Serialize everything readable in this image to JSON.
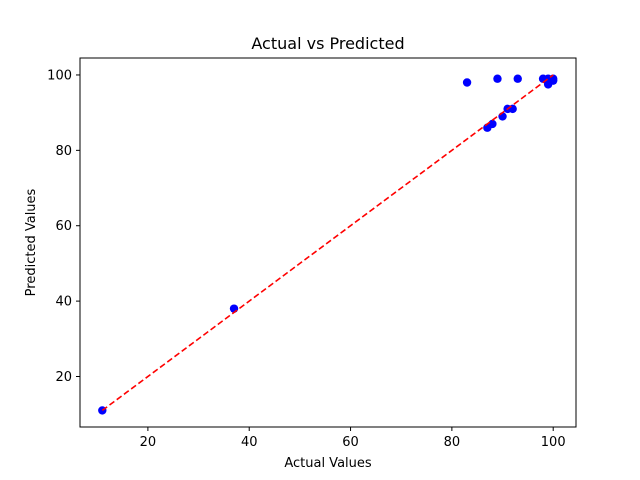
{
  "chart_data": {
    "type": "scatter",
    "title": "Actual vs Predicted",
    "xlabel": "Actual Values",
    "ylabel": "Predicted Values",
    "xlim": [
      6.6,
      104.5
    ],
    "ylim": [
      6.6,
      104.5
    ],
    "xticks": [
      20,
      40,
      60,
      80,
      100
    ],
    "yticks": [
      20,
      40,
      60,
      80,
      100
    ],
    "tick_labels_x": [
      "20",
      "40",
      "60",
      "80",
      "100"
    ],
    "tick_labels_y": [
      "20",
      "40",
      "60",
      "80",
      "100"
    ],
    "grid": false,
    "marker_color": "#0000ff",
    "points": [
      {
        "x": 11,
        "y": 11
      },
      {
        "x": 37,
        "y": 38
      },
      {
        "x": 83,
        "y": 98
      },
      {
        "x": 87,
        "y": 86
      },
      {
        "x": 88,
        "y": 87
      },
      {
        "x": 89,
        "y": 99
      },
      {
        "x": 90,
        "y": 89
      },
      {
        "x": 91,
        "y": 91
      },
      {
        "x": 92,
        "y": 91
      },
      {
        "x": 93,
        "y": 99
      },
      {
        "x": 98,
        "y": 99
      },
      {
        "x": 99,
        "y": 98
      },
      {
        "x": 99,
        "y": 99
      },
      {
        "x": 99,
        "y": 97.5
      },
      {
        "x": 100,
        "y": 99
      },
      {
        "x": 100,
        "y": 98.5
      }
    ],
    "reference_line": {
      "from": [
        11,
        11
      ],
      "to": [
        100,
        100
      ],
      "color": "#ff0000",
      "style": "dashed"
    }
  }
}
